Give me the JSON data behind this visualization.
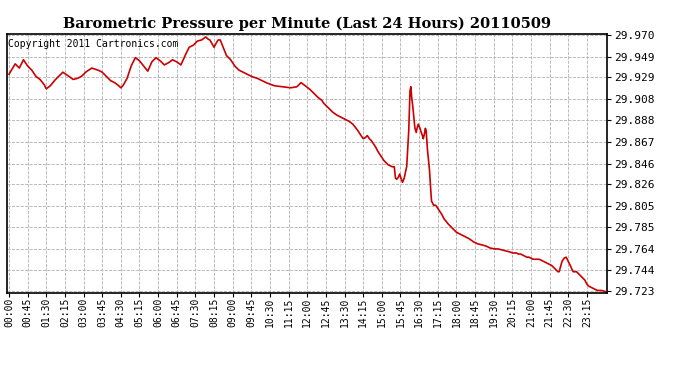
{
  "title": "Barometric Pressure per Minute (Last 24 Hours) 20110509",
  "copyright": "Copyright 2011 Cartronics.com",
  "line_color": "#cc0000",
  "background_color": "#ffffff",
  "grid_color": "#b0b0b0",
  "ylim": [
    29.723,
    29.97
  ],
  "yticks": [
    29.723,
    29.744,
    29.764,
    29.785,
    29.805,
    29.826,
    29.846,
    29.867,
    29.888,
    29.908,
    29.929,
    29.949,
    29.97
  ],
  "xtick_labels": [
    "00:00",
    "00:45",
    "01:30",
    "02:15",
    "03:00",
    "03:45",
    "04:30",
    "05:15",
    "06:00",
    "06:45",
    "07:30",
    "08:15",
    "09:00",
    "09:45",
    "10:30",
    "11:15",
    "12:00",
    "12:45",
    "13:30",
    "14:15",
    "15:00",
    "15:45",
    "16:30",
    "17:15",
    "18:00",
    "18:45",
    "19:30",
    "20:15",
    "21:00",
    "21:45",
    "22:30",
    "23:15"
  ],
  "keypoints": [
    [
      0,
      29.932
    ],
    [
      15,
      29.942
    ],
    [
      25,
      29.938
    ],
    [
      35,
      29.946
    ],
    [
      45,
      29.94
    ],
    [
      55,
      29.936
    ],
    [
      65,
      29.93
    ],
    [
      75,
      29.927
    ],
    [
      85,
      29.922
    ],
    [
      90,
      29.918
    ],
    [
      100,
      29.921
    ],
    [
      110,
      29.926
    ],
    [
      120,
      29.93
    ],
    [
      130,
      29.934
    ],
    [
      145,
      29.93
    ],
    [
      155,
      29.927
    ],
    [
      165,
      29.928
    ],
    [
      175,
      29.93
    ],
    [
      185,
      29.934
    ],
    [
      200,
      29.938
    ],
    [
      215,
      29.936
    ],
    [
      225,
      29.934
    ],
    [
      235,
      29.93
    ],
    [
      245,
      29.926
    ],
    [
      255,
      29.924
    ],
    [
      265,
      29.921
    ],
    [
      270,
      29.919
    ],
    [
      275,
      29.921
    ],
    [
      285,
      29.928
    ],
    [
      295,
      29.94
    ],
    [
      305,
      29.948
    ],
    [
      315,
      29.945
    ],
    [
      325,
      29.94
    ],
    [
      335,
      29.935
    ],
    [
      345,
      29.944
    ],
    [
      355,
      29.948
    ],
    [
      365,
      29.945
    ],
    [
      375,
      29.941
    ],
    [
      385,
      29.943
    ],
    [
      395,
      29.946
    ],
    [
      405,
      29.944
    ],
    [
      415,
      29.941
    ],
    [
      425,
      29.95
    ],
    [
      435,
      29.958
    ],
    [
      445,
      29.96
    ],
    [
      455,
      29.964
    ],
    [
      465,
      29.965
    ],
    [
      475,
      29.968
    ],
    [
      480,
      29.966
    ],
    [
      485,
      29.965
    ],
    [
      495,
      29.958
    ],
    [
      500,
      29.962
    ],
    [
      505,
      29.965
    ],
    [
      510,
      29.965
    ],
    [
      515,
      29.96
    ],
    [
      520,
      29.955
    ],
    [
      525,
      29.95
    ],
    [
      535,
      29.946
    ],
    [
      545,
      29.94
    ],
    [
      555,
      29.936
    ],
    [
      565,
      29.934
    ],
    [
      575,
      29.932
    ],
    [
      585,
      29.93
    ],
    [
      600,
      29.928
    ],
    [
      620,
      29.924
    ],
    [
      640,
      29.921
    ],
    [
      660,
      29.92
    ],
    [
      680,
      29.919
    ],
    [
      695,
      29.92
    ],
    [
      705,
      29.924
    ],
    [
      715,
      29.921
    ],
    [
      725,
      29.918
    ],
    [
      735,
      29.914
    ],
    [
      745,
      29.91
    ],
    [
      755,
      29.907
    ],
    [
      760,
      29.904
    ],
    [
      770,
      29.9
    ],
    [
      780,
      29.896
    ],
    [
      790,
      29.893
    ],
    [
      800,
      29.891
    ],
    [
      810,
      29.889
    ],
    [
      815,
      29.888
    ],
    [
      820,
      29.887
    ],
    [
      830,
      29.884
    ],
    [
      840,
      29.879
    ],
    [
      845,
      29.876
    ],
    [
      850,
      29.873
    ],
    [
      855,
      29.87
    ],
    [
      860,
      29.871
    ],
    [
      865,
      29.873
    ],
    [
      870,
      29.87
    ],
    [
      875,
      29.868
    ],
    [
      880,
      29.865
    ],
    [
      885,
      29.862
    ],
    [
      890,
      29.858
    ],
    [
      895,
      29.855
    ],
    [
      900,
      29.852
    ],
    [
      905,
      29.849
    ],
    [
      910,
      29.847
    ],
    [
      915,
      29.845
    ],
    [
      920,
      29.844
    ],
    [
      925,
      29.843
    ],
    [
      930,
      29.843
    ],
    [
      933,
      29.832
    ],
    [
      936,
      29.831
    ],
    [
      940,
      29.833
    ],
    [
      943,
      29.836
    ],
    [
      946,
      29.832
    ],
    [
      950,
      29.828
    ],
    [
      954,
      29.832
    ],
    [
      958,
      29.84
    ],
    [
      960,
      29.843
    ],
    [
      965,
      29.878
    ],
    [
      968,
      29.916
    ],
    [
      970,
      29.92
    ],
    [
      972,
      29.91
    ],
    [
      975,
      29.9
    ],
    [
      978,
      29.887
    ],
    [
      980,
      29.88
    ],
    [
      983,
      29.876
    ],
    [
      985,
      29.88
    ],
    [
      988,
      29.884
    ],
    [
      990,
      29.882
    ],
    [
      992,
      29.88
    ],
    [
      995,
      29.876
    ],
    [
      998,
      29.873
    ],
    [
      1000,
      29.87
    ],
    [
      1003,
      29.875
    ],
    [
      1005,
      29.88
    ],
    [
      1007,
      29.878
    ],
    [
      1010,
      29.86
    ],
    [
      1015,
      29.84
    ],
    [
      1018,
      29.82
    ],
    [
      1020,
      29.81
    ],
    [
      1025,
      29.806
    ],
    [
      1030,
      29.806
    ],
    [
      1035,
      29.803
    ],
    [
      1040,
      29.8
    ],
    [
      1045,
      29.797
    ],
    [
      1050,
      29.793
    ],
    [
      1060,
      29.788
    ],
    [
      1070,
      29.784
    ],
    [
      1080,
      29.78
    ],
    [
      1090,
      29.778
    ],
    [
      1100,
      29.776
    ],
    [
      1110,
      29.774
    ],
    [
      1120,
      29.771
    ],
    [
      1130,
      29.769
    ],
    [
      1140,
      29.768
    ],
    [
      1150,
      29.767
    ],
    [
      1160,
      29.765
    ],
    [
      1170,
      29.764
    ],
    [
      1180,
      29.764
    ],
    [
      1190,
      29.763
    ],
    [
      1200,
      29.762
    ],
    [
      1210,
      29.761
    ],
    [
      1215,
      29.76
    ],
    [
      1220,
      29.76
    ],
    [
      1225,
      29.76
    ],
    [
      1230,
      29.759
    ],
    [
      1235,
      29.759
    ],
    [
      1240,
      29.758
    ],
    [
      1245,
      29.757
    ],
    [
      1250,
      29.756
    ],
    [
      1255,
      29.756
    ],
    [
      1260,
      29.755
    ],
    [
      1265,
      29.754
    ],
    [
      1270,
      29.754
    ],
    [
      1275,
      29.754
    ],
    [
      1280,
      29.754
    ],
    [
      1285,
      29.753
    ],
    [
      1290,
      29.752
    ],
    [
      1295,
      29.751
    ],
    [
      1300,
      29.75
    ],
    [
      1305,
      29.749
    ],
    [
      1310,
      29.748
    ],
    [
      1315,
      29.746
    ],
    [
      1320,
      29.744
    ],
    [
      1325,
      29.742
    ],
    [
      1328,
      29.742
    ],
    [
      1330,
      29.745
    ],
    [
      1335,
      29.752
    ],
    [
      1340,
      29.755
    ],
    [
      1345,
      29.756
    ],
    [
      1350,
      29.752
    ],
    [
      1355,
      29.748
    ],
    [
      1358,
      29.745
    ],
    [
      1362,
      29.742
    ],
    [
      1365,
      29.742
    ],
    [
      1370,
      29.742
    ],
    [
      1375,
      29.74
    ],
    [
      1380,
      29.738
    ],
    [
      1385,
      29.736
    ],
    [
      1390,
      29.734
    ],
    [
      1395,
      29.73
    ],
    [
      1400,
      29.728
    ],
    [
      1410,
      29.726
    ],
    [
      1420,
      29.724
    ],
    [
      1430,
      29.724
    ],
    [
      1439,
      29.723
    ]
  ]
}
